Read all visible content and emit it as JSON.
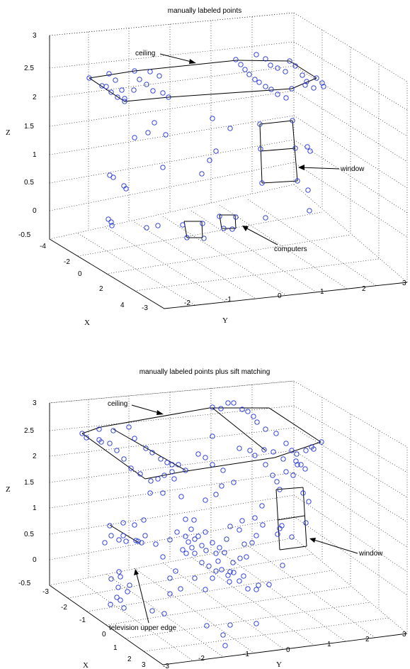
{
  "chart_data": [
    {
      "type": "scatter3d",
      "title": "manually labeled points",
      "xlabel": "X",
      "ylabel": "Y",
      "zlabel": "Z",
      "xlim": [
        -4,
        4
      ],
      "ylim": [
        -3,
        3
      ],
      "zlim": [
        -0.5,
        3
      ],
      "xticks": [
        "-4",
        "-2",
        "0",
        "2",
        "4"
      ],
      "yticks": [
        "-3",
        "-2",
        "-1",
        "0",
        "1",
        "2",
        "3"
      ],
      "zticks": [
        "-0.5",
        "0",
        "0.5",
        "1",
        "1.5",
        "2",
        "2.5",
        "3"
      ],
      "grid": true,
      "marker_color": "#1c2fd6",
      "annotations": [
        "ceiling",
        "window",
        "computers"
      ],
      "screen_points": [
        [
          126,
          110
        ],
        [
          154,
          104
        ],
        [
          163,
          113
        ],
        [
          144,
          121
        ],
        [
          157,
          130
        ],
        [
          166,
          137
        ],
        [
          176,
          143
        ],
        [
          150,
          122
        ],
        [
          172,
          127
        ],
        [
          189,
          127
        ],
        [
          176,
          139
        ],
        [
          190,
          100
        ],
        [
          197,
          112
        ],
        [
          207,
          119
        ],
        [
          216,
          128
        ],
        [
          230,
          131
        ],
        [
          238,
          137
        ],
        [
          212,
          101
        ],
        [
          225,
          107
        ],
        [
          333,
          84
        ],
        [
          340,
          91
        ],
        [
          346,
          98
        ],
        [
          352,
          105
        ],
        [
          360,
          112
        ],
        [
          366,
          116
        ],
        [
          375,
          122
        ],
        [
          383,
          126
        ],
        [
          392,
          133
        ],
        [
          404,
          138
        ],
        [
          412,
          125
        ],
        [
          427,
          106
        ],
        [
          433,
          115
        ],
        [
          447,
          110
        ],
        [
          455,
          117
        ],
        [
          362,
          77
        ],
        [
          375,
          83
        ],
        [
          382,
          92
        ],
        [
          392,
          96
        ],
        [
          403,
          101
        ],
        [
          409,
          86
        ],
        [
          417,
          93
        ],
        [
          431,
          120
        ],
        [
          443,
          124
        ],
        [
          457,
          122
        ],
        [
          367,
          175
        ],
        [
          368,
          210
        ],
        [
          370,
          258
        ],
        [
          413,
          170
        ],
        [
          417,
          209
        ],
        [
          420,
          255
        ],
        [
          434,
          207
        ],
        [
          438,
          213
        ],
        [
          300,
          167
        ],
        [
          325,
          181
        ],
        [
          305,
          213
        ],
        [
          296,
          226
        ],
        [
          285,
          245
        ],
        [
          230,
          236
        ],
        [
          209,
          187
        ],
        [
          218,
          173
        ],
        [
          234,
          190
        ],
        [
          190,
          194
        ],
        [
          155,
          247
        ],
        [
          160,
          250
        ],
        [
          175,
          262
        ],
        [
          178,
          266
        ],
        [
          153,
          309
        ],
        [
          157,
          313
        ],
        [
          158,
          318
        ],
        [
          207,
          321
        ],
        [
          223,
          318
        ],
        [
          258,
          317
        ],
        [
          264,
          335
        ],
        [
          286,
          315
        ],
        [
          288,
          336
        ],
        [
          310,
          305
        ],
        [
          316,
          322
        ],
        [
          328,
          323
        ],
        [
          333,
          306
        ],
        [
          375,
          307
        ],
        [
          437,
          297
        ],
        [
          435,
          268
        ]
      ],
      "screen_segments": [
        [
          [
            126,
            110
          ],
          [
            190,
            100
          ]
        ],
        [
          [
            190,
            100
          ],
          [
            334,
            85
          ]
        ],
        [
          [
            334,
            85
          ],
          [
            409,
            86
          ]
        ],
        [
          [
            409,
            86
          ],
          [
            447,
            110
          ]
        ],
        [
          [
            176,
            143
          ],
          [
            238,
            137
          ]
        ],
        [
          [
            238,
            137
          ],
          [
            412,
            125
          ]
        ],
        [
          [
            412,
            125
          ],
          [
            447,
            110
          ]
        ],
        [
          [
            126,
            110
          ],
          [
            176,
            143
          ]
        ],
        [
          [
            367,
            175
          ],
          [
            413,
            170
          ]
        ],
        [
          [
            413,
            170
          ],
          [
            420,
            255
          ]
        ],
        [
          [
            420,
            255
          ],
          [
            370,
            258
          ]
        ],
        [
          [
            370,
            258
          ],
          [
            367,
            175
          ]
        ],
        [
          [
            368,
            213
          ],
          [
            417,
            209
          ]
        ],
        [
          [
            260,
            312
          ],
          [
            285,
            312
          ]
        ],
        [
          [
            285,
            312
          ],
          [
            286,
            335
          ]
        ],
        [
          [
            286,
            335
          ],
          [
            264,
            335
          ]
        ],
        [
          [
            264,
            335
          ],
          [
            260,
            312
          ]
        ],
        [
          [
            310,
            303
          ],
          [
            332,
            303
          ]
        ],
        [
          [
            332,
            303
          ],
          [
            333,
            322
          ]
        ],
        [
          [
            333,
            322
          ],
          [
            313,
            322
          ]
        ],
        [
          [
            313,
            322
          ],
          [
            310,
            303
          ]
        ]
      ]
    },
    {
      "type": "scatter3d",
      "title": "manually labeled points plus sift matching",
      "xlabel": "X",
      "ylabel": "Y",
      "zlabel": "Z",
      "xlim": [
        -3,
        3
      ],
      "ylim": [
        -3,
        3
      ],
      "zlim": [
        -0.5,
        3
      ],
      "xticks": [
        "-3",
        "-2",
        "-1",
        "0",
        "1",
        "2",
        "3"
      ],
      "yticks": [
        "-3",
        "-2",
        "-1",
        "0",
        "1",
        "2",
        "3"
      ],
      "zticks": [
        "-0.5",
        "0",
        "0.5",
        "1",
        "1.5",
        "2",
        "2.5",
        "3"
      ],
      "grid": true,
      "marker_color": "#1c2fd6",
      "annotations": [
        "ceiling",
        "window",
        "television upper edge"
      ],
      "screen_points": [
        [
          116,
          136
        ],
        [
          122,
          142
        ],
        [
          140,
          130
        ],
        [
          140,
          145
        ],
        [
          155,
          150
        ],
        [
          165,
          160
        ],
        [
          175,
          172
        ],
        [
          185,
          185
        ],
        [
          198,
          193
        ],
        [
          213,
          203
        ],
        [
          223,
          200
        ],
        [
          232,
          195
        ],
        [
          243,
          190
        ],
        [
          252,
          180
        ],
        [
          262,
          188
        ],
        [
          143,
          148
        ],
        [
          160,
          132
        ],
        [
          182,
          127
        ],
        [
          190,
          143
        ],
        [
          206,
          157
        ],
        [
          215,
          163
        ],
        [
          227,
          172
        ],
        [
          236,
          177
        ],
        [
          243,
          180
        ],
        [
          300,
          99
        ],
        [
          312,
          101
        ],
        [
          322,
          93
        ],
        [
          330,
          93
        ],
        [
          342,
          102
        ],
        [
          350,
          105
        ],
        [
          358,
          112
        ],
        [
          363,
          120
        ],
        [
          375,
          130
        ],
        [
          390,
          136
        ],
        [
          404,
          150
        ],
        [
          412,
          160
        ],
        [
          419,
          165
        ],
        [
          432,
          160
        ],
        [
          440,
          155
        ],
        [
          454,
          148
        ],
        [
          373,
          159
        ],
        [
          386,
          162
        ],
        [
          400,
          172
        ],
        [
          418,
          175
        ],
        [
          425,
          180
        ],
        [
          431,
          186
        ],
        [
          443,
          158
        ],
        [
          300,
          140
        ],
        [
          280,
          165
        ],
        [
          290,
          170
        ],
        [
          300,
          180
        ],
        [
          315,
          188
        ],
        [
          338,
          157
        ],
        [
          353,
          160
        ],
        [
          360,
          167
        ],
        [
          375,
          180
        ],
        [
          385,
          195
        ],
        [
          391,
          204
        ],
        [
          395,
          215
        ],
        [
          404,
          190
        ],
        [
          414,
          195
        ],
        [
          420,
          180
        ],
        [
          428,
          220
        ],
        [
          436,
          232
        ],
        [
          432,
          262
        ],
        [
          395,
          270
        ],
        [
          398,
          266
        ],
        [
          392,
          278
        ],
        [
          412,
          282
        ],
        [
          399,
          322
        ],
        [
          246,
          200
        ],
        [
          230,
          220
        ],
        [
          212,
          220
        ],
        [
          256,
          225
        ],
        [
          290,
          230
        ],
        [
          305,
          222
        ],
        [
          313,
          210
        ],
        [
          330,
          205
        ],
        [
          262,
          257
        ],
        [
          274,
          258
        ],
        [
          270,
          271
        ],
        [
          262,
          281
        ],
        [
          266,
          289
        ],
        [
          275,
          285
        ],
        [
          271,
          297
        ],
        [
          285,
          294
        ],
        [
          291,
          301
        ],
        [
          263,
          305
        ],
        [
          275,
          305
        ],
        [
          305,
          305
        ],
        [
          310,
          297
        ],
        [
          320,
          285
        ],
        [
          325,
          267
        ],
        [
          338,
          272
        ],
        [
          345,
          292
        ],
        [
          339,
          312
        ],
        [
          329,
          318
        ],
        [
          317,
          304
        ],
        [
          308,
          316
        ],
        [
          300,
          290
        ],
        [
          290,
          275
        ],
        [
          280,
          281
        ],
        [
          285,
          318
        ],
        [
          295,
          323
        ],
        [
          305,
          330
        ],
        [
          313,
          328
        ],
        [
          322,
          336
        ],
        [
          330,
          332
        ],
        [
          338,
          344
        ],
        [
          344,
          337
        ],
        [
          350,
          355
        ],
        [
          362,
          356
        ],
        [
          365,
          350
        ],
        [
          380,
          349
        ],
        [
          325,
          331
        ],
        [
          324,
          345
        ],
        [
          342,
          259
        ],
        [
          348,
          310
        ],
        [
          356,
          290
        ],
        [
          362,
          280
        ],
        [
          371,
          265
        ],
        [
          360,
          255
        ],
        [
          370,
          238
        ],
        [
          240,
          286
        ],
        [
          250,
          275
        ],
        [
          258,
          300
        ],
        [
          275,
          340
        ],
        [
          240,
          340
        ],
        [
          248,
          330
        ],
        [
          230,
          310
        ],
        [
          220,
          292
        ],
        [
          205,
          280
        ],
        [
          195,
          288
        ],
        [
          178,
          288
        ],
        [
          168,
          286
        ],
        [
          157,
          280
        ],
        [
          148,
          290
        ],
        [
          174,
          262
        ],
        [
          190,
          265
        ],
        [
          203,
          258
        ],
        [
          183,
          350
        ],
        [
          180,
          359
        ],
        [
          170,
          338
        ],
        [
          168,
          331
        ],
        [
          157,
          341
        ],
        [
          167,
          353
        ],
        [
          165,
          367
        ],
        [
          170,
          371
        ],
        [
          175,
          382
        ],
        [
          156,
          377
        ],
        [
          155,
          266
        ],
        [
          174,
          280
        ],
        [
          192,
          287
        ],
        [
          200,
          290
        ],
        [
          362,
          404
        ],
        [
          325,
          406
        ],
        [
          315,
          420
        ],
        [
          318,
          435
        ],
        [
          292,
          407
        ],
        [
          240,
          362
        ],
        [
          232,
          390
        ],
        [
          215,
          386
        ],
        [
          255,
          355
        ],
        [
          290,
          356
        ],
        [
          300,
          340
        ]
      ],
      "screen_segments": [
        [
          [
            116,
            136
          ],
          [
            142,
            127
          ]
        ],
        [
          [
            142,
            127
          ],
          [
            296,
            100
          ]
        ],
        [
          [
            296,
            100
          ],
          [
            380,
            100
          ]
        ],
        [
          [
            380,
            100
          ],
          [
            453,
            148
          ]
        ],
        [
          [
            205,
            200
          ],
          [
            257,
            190
          ]
        ],
        [
          [
            257,
            190
          ],
          [
            388,
            170
          ]
        ],
        [
          [
            388,
            170
          ],
          [
            453,
            148
          ]
        ],
        [
          [
            116,
            136
          ],
          [
            205,
            200
          ]
        ],
        [
          [
            160,
            130
          ],
          [
            262,
            188
          ]
        ],
        [
          [
            300,
            100
          ],
          [
            375,
            160
          ]
        ],
        [
          [
            390,
            215
          ],
          [
            428,
            212
          ]
        ],
        [
          [
            428,
            212
          ],
          [
            433,
            295
          ]
        ],
        [
          [
            433,
            295
          ],
          [
            395,
            300
          ]
        ],
        [
          [
            395,
            300
          ],
          [
            390,
            215
          ]
        ],
        [
          [
            392,
            258
          ],
          [
            430,
            252
          ]
        ],
        [
          [
            155,
            265
          ],
          [
            196,
            290
          ]
        ]
      ]
    }
  ]
}
